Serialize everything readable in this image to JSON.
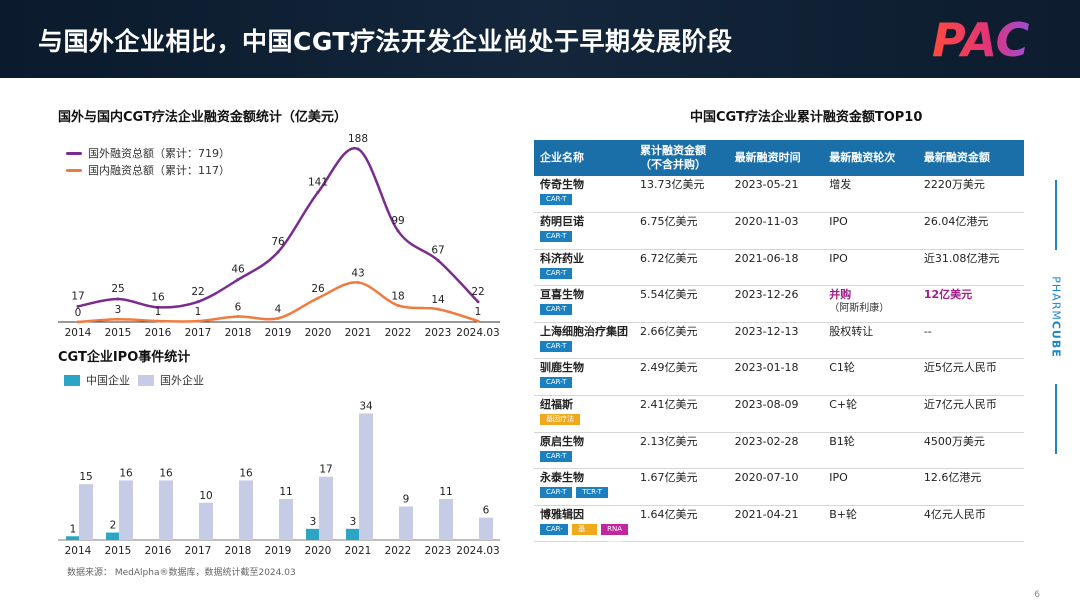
{
  "header": {
    "title": "与国外企业相比，中国CGT疗法开发企业尚处于早期发展阶段"
  },
  "logo": {
    "text": "PAC"
  },
  "side_label": {
    "prefix": "PHARM",
    "suffix": "CUBE"
  },
  "page_number": "6",
  "source": "数据来源： MedAlpha®数据库，数据统计截至2024.03",
  "colors": {
    "foreign_line": "#7a2d8e",
    "domestic_line": "#f07b3f",
    "china_bar": "#2aa6c4",
    "foreign_bar": "#c6cbe6",
    "table_header": "#1a6fa8",
    "accent": "#a0208a"
  },
  "chart_data": [
    {
      "type": "line",
      "title": "国外与国内CGT疗法企业融资金额统计（亿美元）",
      "categories": [
        "2014",
        "2015",
        "2016",
        "2017",
        "2018",
        "2019",
        "2020",
        "2021",
        "2022",
        "2023",
        "2024.03"
      ],
      "series": [
        {
          "name": "国外融资总额（累计：719）",
          "values": [
            17,
            25,
            16,
            22,
            46,
            76,
            141,
            188,
            99,
            67,
            22
          ]
        },
        {
          "name": "国内融资总额（累计：117）",
          "values": [
            0,
            3,
            1,
            1,
            6,
            4,
            26,
            43,
            18,
            14,
            1
          ]
        }
      ],
      "ylim": [
        0,
        200
      ],
      "grid": false,
      "legend": "top-left"
    },
    {
      "type": "bar",
      "title": "CGT企业IPO事件统计",
      "categories": [
        "2014",
        "2015",
        "2016",
        "2017",
        "2018",
        "2019",
        "2020",
        "2021",
        "2022",
        "2023",
        "2024.03"
      ],
      "series": [
        {
          "name": "中国企业",
          "values": [
            1,
            2,
            null,
            null,
            null,
            null,
            3,
            3,
            null,
            null,
            null
          ]
        },
        {
          "name": "国外企业",
          "values": [
            15,
            16,
            16,
            10,
            16,
            11,
            17,
            34,
            9,
            11,
            6
          ]
        }
      ],
      "ylim": [
        0,
        36
      ],
      "grid": false,
      "legend": "top-left"
    },
    {
      "type": "table",
      "title": "中国CGT疗法企业累计融资金额TOP10",
      "headers": [
        "企业名称",
        "累计融资金额",
        "（不含并购）",
        "最新融资时间",
        "最新融资轮次",
        "最新融资金额"
      ],
      "rows": [
        {
          "company": "传奇生物",
          "tags": [
            {
              "label": "CAR-T",
              "kind": "car-t"
            }
          ],
          "amount": "13.73亿美元",
          "date": "2023-05-21",
          "round": "增发",
          "latest": "2220万美元"
        },
        {
          "company": "药明巨诺",
          "tags": [
            {
              "label": "CAR-T",
              "kind": "car-t"
            }
          ],
          "amount": "6.75亿美元",
          "date": "2020-11-03",
          "round": "IPO",
          "latest": "26.04亿港元"
        },
        {
          "company": "科济药业",
          "tags": [
            {
              "label": "CAR-T",
              "kind": "car-t"
            }
          ],
          "amount": "6.72亿美元",
          "date": "2021-06-18",
          "round": "IPO",
          "latest": "近31.08亿港元"
        },
        {
          "company": "亘喜生物",
          "tags": [
            {
              "label": "CAR-T",
              "kind": "car-t"
            }
          ],
          "amount": "5.54亿美元",
          "date": "2023-12-26",
          "round": "并购",
          "round_note": "（阿斯利康）",
          "latest": "12亿美元",
          "highlight": true
        },
        {
          "company": "上海细胞治疗集团",
          "tags": [
            {
              "label": "CAR-T",
              "kind": "car-t"
            }
          ],
          "amount": "2.66亿美元",
          "date": "2023-12-13",
          "round": "股权转让",
          "latest": "--"
        },
        {
          "company": "驯鹿生物",
          "tags": [
            {
              "label": "CAR-T",
              "kind": "car-t"
            }
          ],
          "amount": "2.49亿美元",
          "date": "2023-01-18",
          "round": "C1轮",
          "latest": "近5亿元人民币"
        },
        {
          "company": "纽福斯",
          "tags": [
            {
              "label": "基因疗法",
              "kind": "gene"
            }
          ],
          "amount": "2.41亿美元",
          "date": "2023-08-09",
          "round": "C+轮",
          "latest": "近7亿元人民币"
        },
        {
          "company": "原启生物",
          "tags": [
            {
              "label": "CAR-T",
              "kind": "car-t"
            }
          ],
          "amount": "2.13亿美元",
          "date": "2023-02-28",
          "round": "B1轮",
          "latest": "4500万美元"
        },
        {
          "company": "永泰生物",
          "tags": [
            {
              "label": "CAR-T",
              "kind": "car-t"
            },
            {
              "label": "TCR-T",
              "kind": "tcr-t"
            }
          ],
          "amount": "1.67亿美元",
          "date": "2020-07-10",
          "round": "IPO",
          "latest": "12.6亿港元"
        },
        {
          "company": "博雅辑因",
          "tags": [
            {
              "label": "CAR-T",
              "kind": "car-t"
            },
            {
              "label": "基因编辑",
              "kind": "editing"
            },
            {
              "label": "RNA编辑",
              "kind": "rna"
            }
          ],
          "amount": "1.64亿美元",
          "date": "2021-04-21",
          "round": "B+轮",
          "latest": "4亿元人民币"
        }
      ]
    }
  ]
}
